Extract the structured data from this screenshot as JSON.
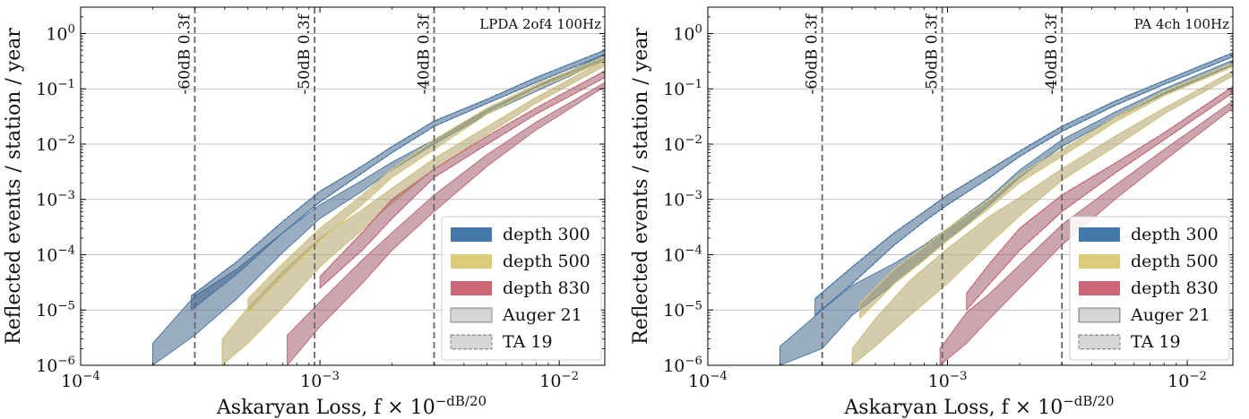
{
  "chart_data": [
    {
      "type": "area",
      "scale": {
        "x": "log",
        "y": "log"
      },
      "xlim": [
        0.0001,
        0.0155
      ],
      "ylim": [
        1e-06,
        3
      ],
      "xlabel": "Askaryan Loss, f × 10",
      "xlabel_exp": "−dB/20",
      "ylabel": "Reflected events / station / year",
      "title": "LPDA 2of4 100Hz",
      "x_ticks": [
        {
          "value": 0.0001,
          "base": "10",
          "exp": "−4"
        },
        {
          "value": 0.001,
          "base": "10",
          "exp": "−3"
        },
        {
          "value": 0.01,
          "base": "10",
          "exp": "−2"
        }
      ],
      "y_ticks": [
        {
          "value": 1e-06,
          "base": "10",
          "exp": "−6"
        },
        {
          "value": 1e-05,
          "base": "10",
          "exp": "−5"
        },
        {
          "value": 0.0001,
          "base": "10",
          "exp": "−4"
        },
        {
          "value": 0.001,
          "base": "10",
          "exp": "−3"
        },
        {
          "value": 0.01,
          "base": "10",
          "exp": "−2"
        },
        {
          "value": 0.1,
          "base": "10",
          "exp": "−1"
        },
        {
          "value": 1,
          "base": "10",
          "exp": "0"
        }
      ],
      "vlines": [
        {
          "x": 0.0003,
          "label": "-60dB 0.3f"
        },
        {
          "x": 0.00095,
          "label": "-50dB 0.3f"
        },
        {
          "x": 0.003,
          "label": "-40dB 0.3f"
        }
      ],
      "colors": {
        "depth 300": "#4477aa",
        "depth 500": "#ddcc77",
        "depth 830": "#cc6677"
      },
      "legend": {
        "position": "lower-right",
        "entries": [
          {
            "label": "depth 300",
            "kind": "fill",
            "color": "#4477aa"
          },
          {
            "label": "depth 500",
            "kind": "fill",
            "color": "#ddcc77"
          },
          {
            "label": "depth 830",
            "kind": "fill",
            "color": "#cc6677"
          },
          {
            "label": "Auger 21",
            "kind": "vhatch"
          },
          {
            "label": "TA 19",
            "kind": "hhatch"
          }
        ]
      },
      "series": [
        {
          "depth": "depth 300",
          "model": "Auger 21",
          "x": [
            0.0002,
            0.0003,
            0.00045,
            0.0007,
            0.001,
            0.0015,
            0.002,
            0.003,
            0.005,
            0.008,
            0.0155
          ],
          "low": [
            1e-06,
            3.5e-06,
            1.6e-05,
            0.00011,
            0.00045,
            0.0014,
            0.0034,
            0.01,
            0.035,
            0.09,
            0.33
          ],
          "high": [
            2.5e-06,
            1.8e-05,
            5.5e-05,
            0.00025,
            0.0008,
            0.0022,
            0.0047,
            0.012,
            0.042,
            0.11,
            0.42
          ]
        },
        {
          "depth": "depth 300",
          "model": "TA 19",
          "x": [
            0.00029,
            0.00045,
            0.0007,
            0.001,
            0.0015,
            0.002,
            0.003,
            0.005,
            0.008,
            0.0155
          ],
          "low": [
            1e-05,
            4.5e-05,
            0.00025,
            0.0009,
            0.003,
            0.007,
            0.021,
            0.055,
            0.13,
            0.42
          ],
          "high": [
            1.8e-05,
            7.5e-05,
            0.0004,
            0.0014,
            0.004,
            0.009,
            0.026,
            0.065,
            0.16,
            0.5
          ]
        },
        {
          "depth": "depth 500",
          "model": "Auger 21",
          "x": [
            0.00039,
            0.0005,
            0.0007,
            0.001,
            0.0015,
            0.002,
            0.003,
            0.005,
            0.008,
            0.0155
          ],
          "low": [
            1e-06,
            2.5e-06,
            1.1e-05,
            6e-05,
            0.00028,
            0.00085,
            0.0035,
            0.015,
            0.055,
            0.26
          ],
          "high": [
            3e-06,
            1.1e-05,
            5e-05,
            0.0002,
            0.00065,
            0.0016,
            0.0055,
            0.021,
            0.07,
            0.33
          ]
        },
        {
          "depth": "depth 500",
          "model": "TA 19",
          "x": [
            0.0005,
            0.0007,
            0.001,
            0.0015,
            0.002,
            0.003,
            0.005,
            0.008,
            0.0155
          ],
          "low": [
            9e-06,
            4e-05,
            0.00018,
            0.0008,
            0.0025,
            0.008,
            0.035,
            0.1,
            0.32
          ],
          "high": [
            1.6e-05,
            7e-05,
            0.0003,
            0.0012,
            0.0035,
            0.012,
            0.045,
            0.12,
            0.38
          ]
        },
        {
          "depth": "depth 830",
          "model": "Auger 21",
          "x": [
            0.00073,
            0.001,
            0.0015,
            0.002,
            0.003,
            0.005,
            0.008,
            0.0155
          ],
          "low": [
            1e-06,
            5e-06,
            3e-05,
            0.00012,
            0.0006,
            0.004,
            0.018,
            0.11
          ],
          "high": [
            3.5e-06,
            1.4e-05,
            8e-05,
            0.00025,
            0.0012,
            0.0065,
            0.025,
            0.13
          ]
        },
        {
          "depth": "depth 830",
          "model": "TA 19",
          "x": [
            0.001,
            0.0015,
            0.002,
            0.003,
            0.005,
            0.008,
            0.0155
          ],
          "low": [
            2.5e-05,
            0.00012,
            0.00045,
            0.0025,
            0.01,
            0.035,
            0.16
          ],
          "high": [
            4e-05,
            0.00025,
            0.001,
            0.0035,
            0.014,
            0.045,
            0.21
          ]
        }
      ]
    },
    {
      "type": "area",
      "scale": {
        "x": "log",
        "y": "log"
      },
      "xlim": [
        0.0001,
        0.0155
      ],
      "ylim": [
        1e-06,
        3
      ],
      "xlabel": "Askaryan Loss, f × 10",
      "xlabel_exp": "−dB/20",
      "ylabel": "Reflected events / station / year",
      "title": "PA 4ch 100Hz",
      "x_ticks": [
        {
          "value": 0.0001,
          "base": "10",
          "exp": "−4"
        },
        {
          "value": 0.001,
          "base": "10",
          "exp": "−3"
        },
        {
          "value": 0.01,
          "base": "10",
          "exp": "−2"
        }
      ],
      "y_ticks": [
        {
          "value": 1e-06,
          "base": "10",
          "exp": "−6"
        },
        {
          "value": 1e-05,
          "base": "10",
          "exp": "−5"
        },
        {
          "value": 0.0001,
          "base": "10",
          "exp": "−4"
        },
        {
          "value": 0.001,
          "base": "10",
          "exp": "−3"
        },
        {
          "value": 0.01,
          "base": "10",
          "exp": "−2"
        },
        {
          "value": 0.1,
          "base": "10",
          "exp": "−1"
        },
        {
          "value": 1,
          "base": "10",
          "exp": "0"
        }
      ],
      "vlines": [
        {
          "x": 0.0003,
          "label": "-60dB 0.3f"
        },
        {
          "x": 0.00095,
          "label": "-50dB 0.3f"
        },
        {
          "x": 0.003,
          "label": "-40dB 0.3f"
        }
      ],
      "colors": {
        "depth 300": "#4477aa",
        "depth 500": "#ddcc77",
        "depth 830": "#cc6677"
      },
      "legend": {
        "position": "lower-right",
        "entries": [
          {
            "label": "depth 300",
            "kind": "fill",
            "color": "#4477aa"
          },
          {
            "label": "depth 500",
            "kind": "fill",
            "color": "#ddcc77"
          },
          {
            "label": "depth 830",
            "kind": "fill",
            "color": "#cc6677"
          },
          {
            "label": "Auger 21",
            "kind": "vhatch"
          },
          {
            "label": "TA 19",
            "kind": "hhatch"
          }
        ]
      },
      "series": [
        {
          "depth": "depth 300",
          "model": "Auger 21",
          "x": [
            0.0002,
            0.0003,
            0.0004,
            0.0006,
            0.0008,
            0.001,
            0.0015,
            0.002,
            0.003,
            0.005,
            0.008,
            0.0155
          ],
          "low": [
            1e-06,
            2e-06,
            8e-06,
            3e-05,
            8e-05,
            0.00018,
            0.0008,
            0.0025,
            0.009,
            0.03,
            0.08,
            0.27
          ],
          "high": [
            2.2e-06,
            1e-05,
            2.8e-05,
            7e-05,
            0.00015,
            0.0003,
            0.0011,
            0.0034,
            0.012,
            0.038,
            0.1,
            0.33
          ]
        },
        {
          "depth": "depth 300",
          "model": "TA 19",
          "x": [
            0.00028,
            0.0004,
            0.0006,
            0.0008,
            0.001,
            0.0015,
            0.002,
            0.003,
            0.005,
            0.008,
            0.0155
          ],
          "low": [
            8e-06,
            3e-05,
            0.00015,
            0.0004,
            0.0008,
            0.0025,
            0.006,
            0.017,
            0.05,
            0.12,
            0.38
          ],
          "high": [
            1.6e-05,
            6e-05,
            0.00025,
            0.0006,
            0.0012,
            0.0035,
            0.0075,
            0.021,
            0.06,
            0.14,
            0.45
          ]
        },
        {
          "depth": "depth 500",
          "model": "Auger 21",
          "x": [
            0.0004,
            0.0005,
            0.0007,
            0.001,
            0.0015,
            0.002,
            0.003,
            0.005,
            0.008,
            0.0155
          ],
          "low": [
            1e-06,
            2.2e-06,
            8e-06,
            3e-05,
            0.00016,
            0.0005,
            0.0022,
            0.009,
            0.035,
            0.17
          ],
          "high": [
            2e-06,
            7e-06,
            3.5e-05,
            0.00013,
            0.0005,
            0.0011,
            0.0036,
            0.014,
            0.045,
            0.21
          ]
        },
        {
          "depth": "depth 500",
          "model": "TA 19",
          "x": [
            0.00043,
            0.0006,
            0.0008,
            0.001,
            0.0015,
            0.002,
            0.003,
            0.005,
            0.008,
            0.0155
          ],
          "low": [
            7e-06,
            3e-05,
            8e-05,
            0.00018,
            0.0007,
            0.002,
            0.006,
            0.025,
            0.075,
            0.25
          ],
          "high": [
            1.3e-05,
            5.5e-05,
            0.00014,
            0.0003,
            0.001,
            0.0028,
            0.008,
            0.03,
            0.09,
            0.29
          ]
        },
        {
          "depth": "depth 830",
          "model": "Auger 21",
          "x": [
            0.00093,
            0.0012,
            0.0015,
            0.002,
            0.003,
            0.005,
            0.008,
            0.0155
          ],
          "low": [
            1e-06,
            2.5e-06,
            7e-06,
            2.5e-05,
            0.00015,
            0.001,
            0.005,
            0.045
          ],
          "high": [
            2e-06,
            9e-06,
            2e-05,
            6.5e-05,
            0.00035,
            0.0018,
            0.008,
            0.06
          ]
        },
        {
          "depth": "depth 830",
          "model": "TA 19",
          "x": [
            0.0012,
            0.0015,
            0.002,
            0.003,
            0.005,
            0.008,
            0.0155
          ],
          "low": [
            1e-05,
            3e-05,
            0.00012,
            0.0006,
            0.003,
            0.012,
            0.085
          ],
          "high": [
            2e-05,
            7e-05,
            0.0003,
            0.0012,
            0.0045,
            0.016,
            0.11
          ]
        }
      ]
    }
  ]
}
